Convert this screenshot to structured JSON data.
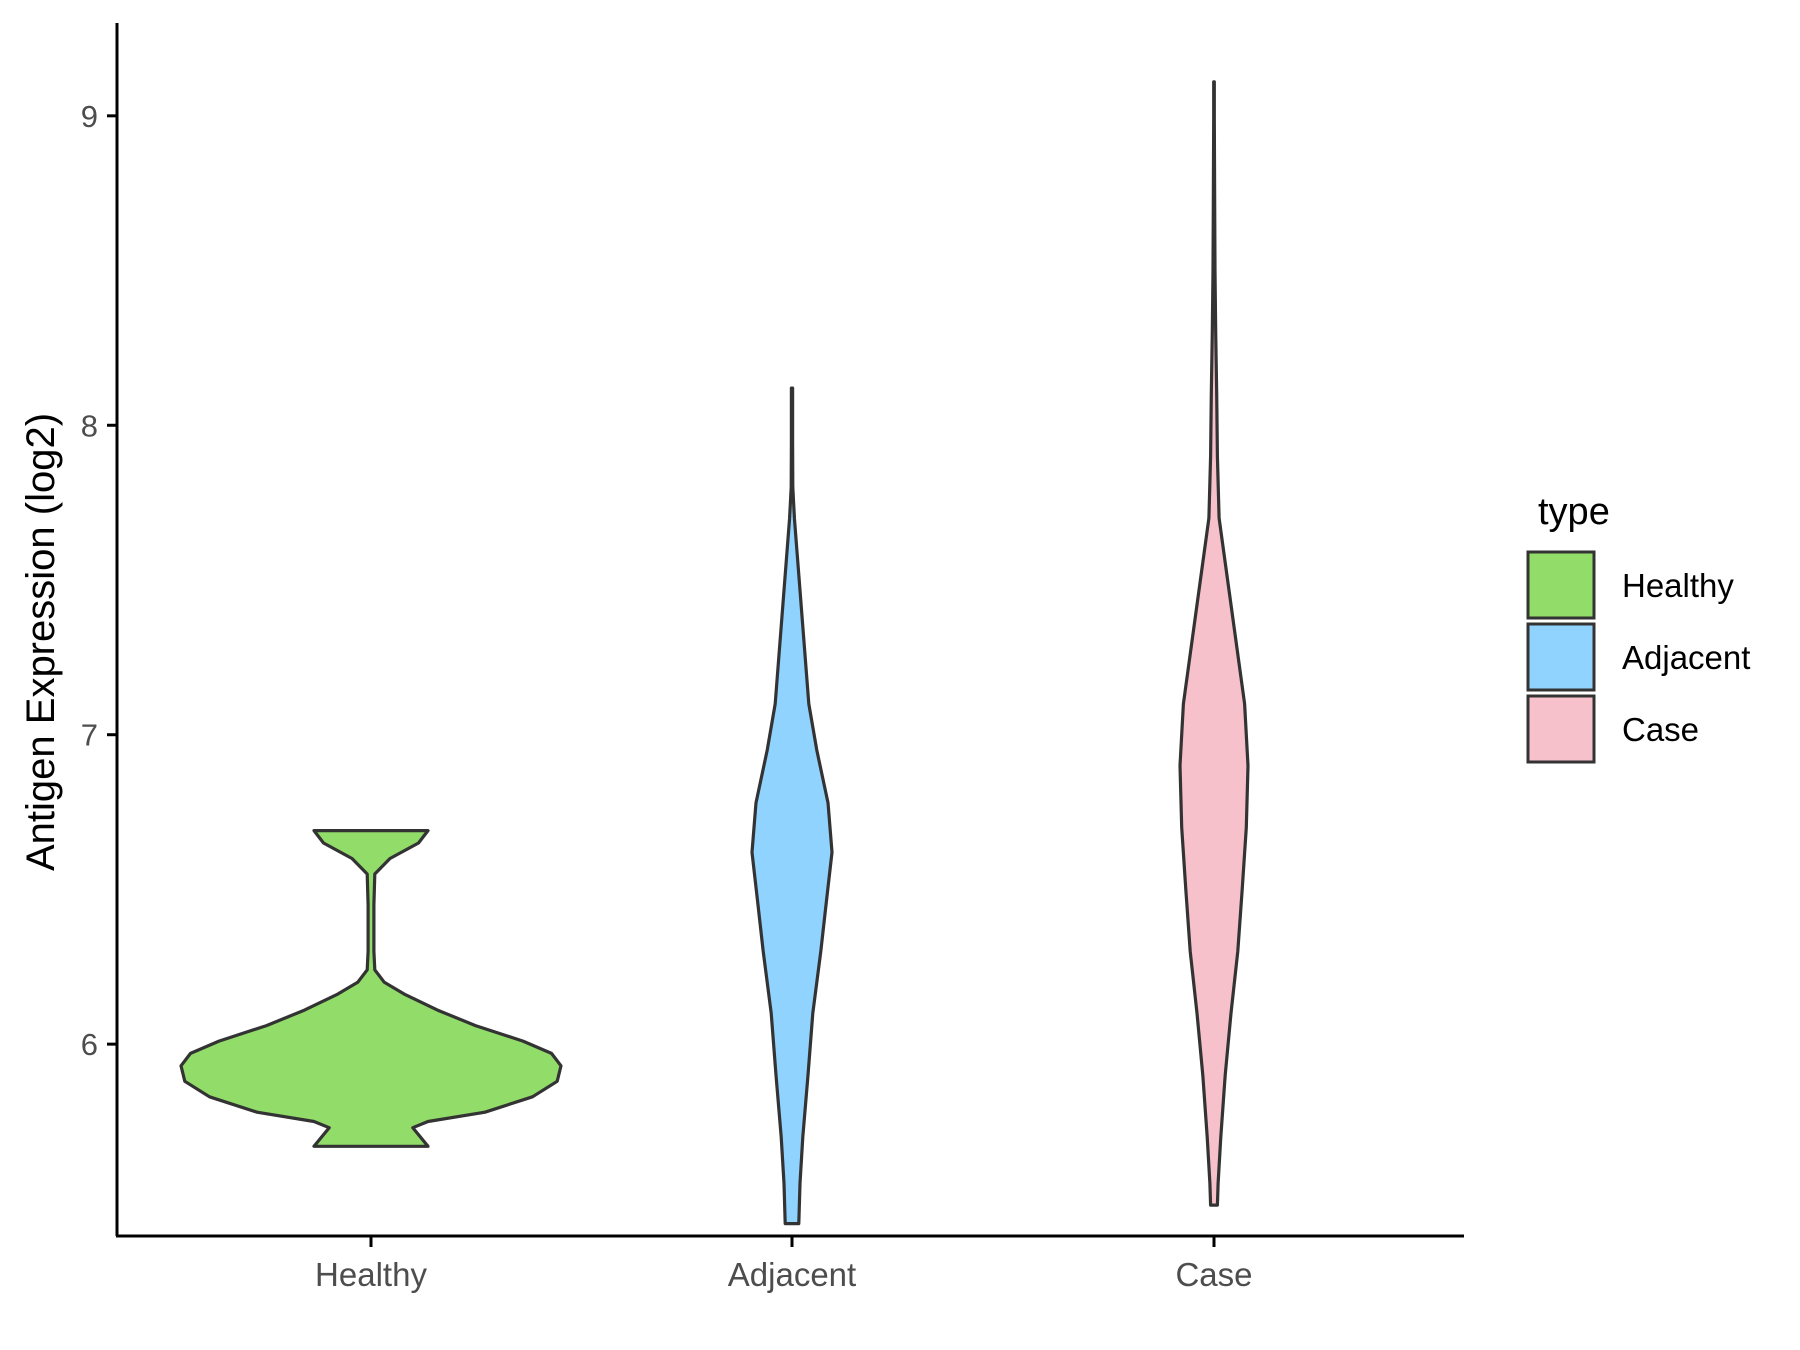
{
  "chart_data": {
    "type": "violin",
    "title": "",
    "xlabel": "",
    "ylabel": "Antigen Expression (log2)",
    "categories": [
      "Healthy",
      "Adjacent",
      "Case"
    ],
    "ylim": [
      5.38,
      9.3
    ],
    "yticks": [
      6,
      7,
      8,
      9
    ],
    "grid": false,
    "legend": {
      "title": "type",
      "placement": "right",
      "items": [
        {
          "label": "Healthy",
          "color": "#92DC6A"
        },
        {
          "label": "Adjacent",
          "color": "#91D3FF"
        },
        {
          "label": "Case",
          "color": "#F7C1CC"
        }
      ]
    },
    "outline_color": "#333333",
    "series": [
      {
        "category": "Healthy",
        "color": "#92DC6A",
        "min": 5.67,
        "max": 6.69,
        "profile": [
          [
            5.67,
            0.3
          ],
          [
            5.7,
            0.26
          ],
          [
            5.73,
            0.22
          ],
          [
            5.75,
            0.3
          ],
          [
            5.78,
            0.6
          ],
          [
            5.83,
            0.85
          ],
          [
            5.88,
            0.98
          ],
          [
            5.93,
            1.0
          ],
          [
            5.97,
            0.95
          ],
          [
            6.01,
            0.8
          ],
          [
            6.06,
            0.55
          ],
          [
            6.11,
            0.35
          ],
          [
            6.16,
            0.18
          ],
          [
            6.2,
            0.07
          ],
          [
            6.24,
            0.02
          ],
          [
            6.3,
            0.015
          ],
          [
            6.45,
            0.015
          ],
          [
            6.55,
            0.02
          ],
          [
            6.6,
            0.1
          ],
          [
            6.65,
            0.25
          ],
          [
            6.69,
            0.3
          ]
        ]
      },
      {
        "category": "Adjacent",
        "color": "#91D3FF",
        "min": 5.42,
        "max": 8.12,
        "profile": [
          [
            5.42,
            0.17
          ],
          [
            5.55,
            0.2
          ],
          [
            5.7,
            0.27
          ],
          [
            5.9,
            0.4
          ],
          [
            6.1,
            0.52
          ],
          [
            6.3,
            0.72
          ],
          [
            6.45,
            0.85
          ],
          [
            6.62,
            1.0
          ],
          [
            6.78,
            0.9
          ],
          [
            6.95,
            0.62
          ],
          [
            7.1,
            0.42
          ],
          [
            7.3,
            0.3
          ],
          [
            7.5,
            0.18
          ],
          [
            7.7,
            0.06
          ],
          [
            7.8,
            0.02
          ],
          [
            7.95,
            0.015
          ],
          [
            8.12,
            0.015
          ]
        ]
      },
      {
        "category": "Case",
        "color": "#F7C1CC",
        "min": 5.48,
        "max": 9.11,
        "profile": [
          [
            5.48,
            0.1
          ],
          [
            5.55,
            0.12
          ],
          [
            5.7,
            0.2
          ],
          [
            5.9,
            0.33
          ],
          [
            6.1,
            0.5
          ],
          [
            6.3,
            0.7
          ],
          [
            6.5,
            0.83
          ],
          [
            6.7,
            0.95
          ],
          [
            6.9,
            1.0
          ],
          [
            7.1,
            0.9
          ],
          [
            7.3,
            0.65
          ],
          [
            7.5,
            0.4
          ],
          [
            7.7,
            0.15
          ],
          [
            7.9,
            0.1
          ],
          [
            8.1,
            0.08
          ],
          [
            8.3,
            0.05
          ],
          [
            8.5,
            0.03
          ],
          [
            8.7,
            0.02
          ],
          [
            9.0,
            0.01
          ],
          [
            9.11,
            0.01
          ]
        ]
      }
    ]
  }
}
